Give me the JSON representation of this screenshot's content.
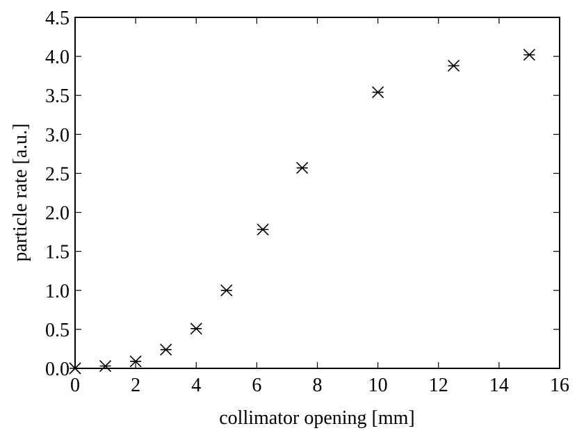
{
  "chart_data": {
    "type": "scatter",
    "xlabel": "collimator opening [mm]",
    "ylabel": "particle rate [a.u.]",
    "x": [
      0,
      1,
      2,
      3,
      4,
      5,
      6.2,
      7.5,
      10,
      12.5,
      15
    ],
    "values": [
      0,
      0.03,
      0.09,
      0.24,
      0.51,
      1.0,
      1.78,
      2.57,
      3.54,
      3.88,
      4.02
    ],
    "color": "#000000",
    "xlim": [
      0,
      16
    ],
    "xticks": [
      0,
      2,
      4,
      6,
      8,
      10,
      12,
      14,
      16
    ],
    "ylim": [
      0,
      4.5
    ],
    "yticks": [
      {
        "value": 0,
        "label": "0.0"
      },
      0.5,
      {
        "value": 1,
        "label": "1.0"
      },
      1.5,
      {
        "value": 2,
        "label": "2.0"
      },
      2.5,
      {
        "value": 3,
        "label": "3.0"
      },
      3.5,
      {
        "value": 4,
        "label": "4.0"
      },
      4.5
    ]
  }
}
